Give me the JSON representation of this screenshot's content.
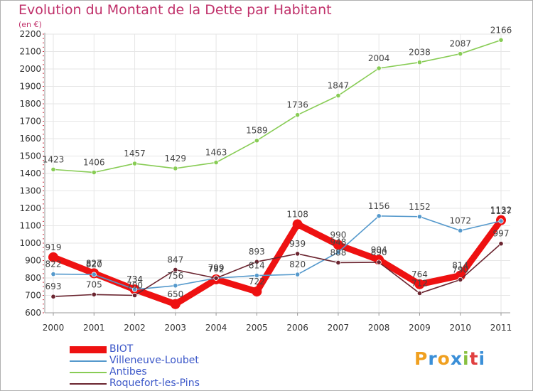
{
  "title": "Evolution du Montant de la Dette par Habitant",
  "unit": "(en €)",
  "logo": "Proxiti",
  "colors": {
    "title": "#c0306a",
    "axis": "#333333",
    "grid": "#e6e6e6",
    "legend_text": "#3a56c8"
  },
  "chart_data": {
    "type": "line",
    "title": "Evolution du Montant de la Dette par Habitant",
    "ylabel": "(en €)",
    "xlabel": "",
    "x": [
      "2000",
      "2001",
      "2002",
      "2003",
      "2004",
      "2005",
      "2006",
      "2007",
      "2008",
      "2009",
      "2010",
      "2011"
    ],
    "ylim": [
      600,
      2200
    ],
    "yticks": [
      600,
      700,
      800,
      900,
      1000,
      1100,
      1200,
      1300,
      1400,
      1500,
      1600,
      1700,
      1800,
      1900,
      2000,
      2100,
      2200
    ],
    "grid": true,
    "legend_position": "bottom-left",
    "series": [
      {
        "name": "BIOT",
        "color": "#ee1111",
        "values": [
          919,
          827,
          734,
          650,
          792,
          722,
          1108,
          990,
          904,
          764,
          814,
          1132
        ]
      },
      {
        "name": "Villeneuve-Loubet",
        "color": "#5599cc",
        "values": [
          822,
          820,
          734,
          756,
          799,
          814,
          820,
          948,
          1156,
          1152,
          1072,
          1127
        ]
      },
      {
        "name": "Antibes",
        "color": "#88cc55",
        "values": [
          1423,
          1406,
          1457,
          1429,
          1463,
          1589,
          1736,
          1847,
          2004,
          2038,
          2087,
          2166
        ]
      },
      {
        "name": "Roquefort-les-Pins",
        "color": "#6b2530",
        "values": [
          693,
          705,
          700,
          847,
          799,
          893,
          939,
          888,
          890,
          712,
          790,
          997
        ]
      }
    ]
  }
}
